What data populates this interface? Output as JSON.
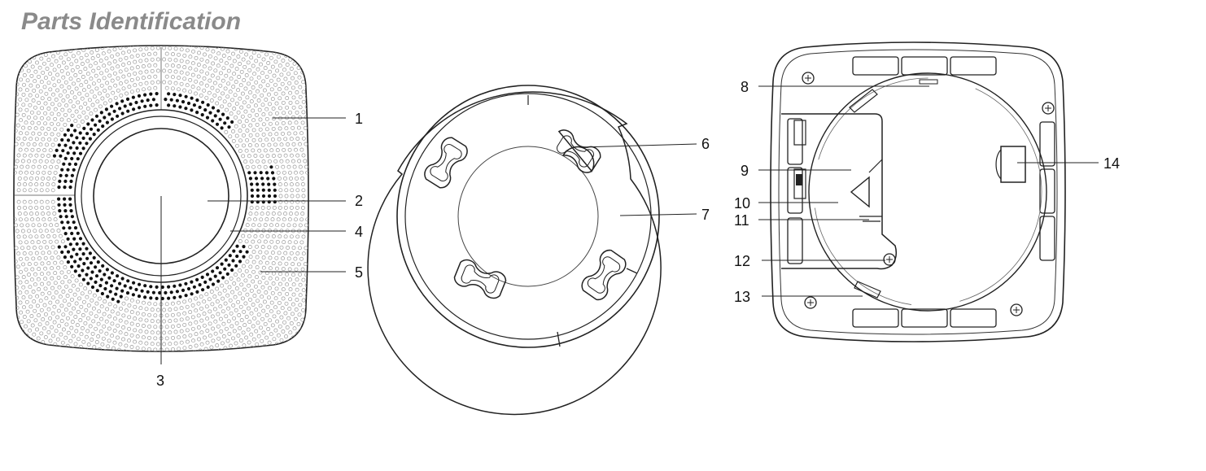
{
  "title": "Parts Identification",
  "callouts": [
    {
      "id": "1"
    },
    {
      "id": "2"
    },
    {
      "id": "3"
    },
    {
      "id": "4"
    },
    {
      "id": "5"
    },
    {
      "id": "6"
    },
    {
      "id": "7"
    },
    {
      "id": "8"
    },
    {
      "id": "9"
    },
    {
      "id": "10"
    },
    {
      "id": "11"
    },
    {
      "id": "12"
    },
    {
      "id": "13"
    },
    {
      "id": "14"
    }
  ]
}
